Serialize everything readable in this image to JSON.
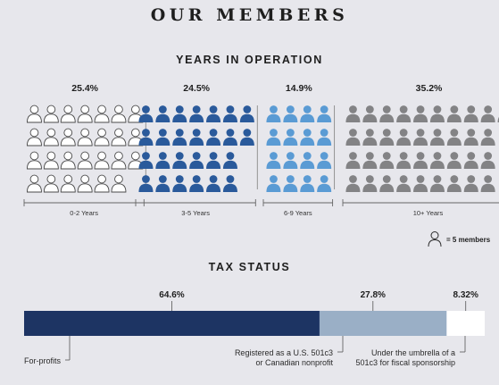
{
  "title": "OUR MEMBERS",
  "legend": {
    "label": "= 5 members",
    "icon": "person-outline-icon"
  },
  "chart_data": [
    {
      "type": "pictograph",
      "title": "YEARS IN OPERATION",
      "unit": "5 members per icon",
      "categories": [
        "0-2 Years",
        "3-5 Years",
        "6-9 Years",
        "10+ Years"
      ],
      "values": [
        "25.4%",
        "24.5%",
        "14.9%",
        "35.2%"
      ],
      "icon_counts": [
        27,
        26,
        16,
        37
      ],
      "colors": [
        "#ffffff",
        "#2a5a9b",
        "#5a9bd4",
        "#838385"
      ]
    },
    {
      "type": "stacked-bar",
      "title": "TAX STATUS",
      "categories": [
        "For-profits",
        "Registered as a U.S. 501c3 or Canadian nonprofit",
        "Under the umbrella of a 501c3 for fiscal sponsorship"
      ],
      "labels": [
        [
          "For-profits"
        ],
        [
          "Registered as a U.S. 501c3",
          "or Canadian nonprofit"
        ],
        [
          "Under the umbrella of a",
          "501c3 for fiscal sponsorship"
        ]
      ],
      "values": [
        64.6,
        27.8,
        8.32
      ],
      "value_labels": [
        "64.6%",
        "27.8%",
        "8.32%"
      ],
      "colors": [
        "#1d3463",
        "#9aafc6",
        "#ffffff"
      ]
    }
  ]
}
